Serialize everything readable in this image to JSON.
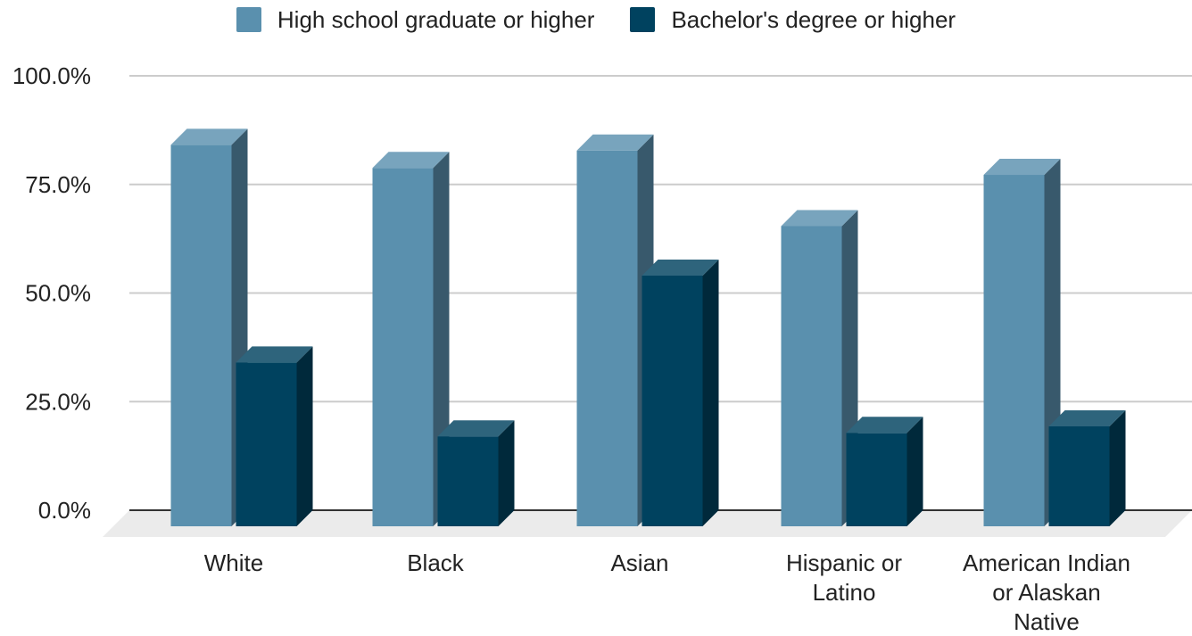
{
  "chart_data": {
    "type": "bar",
    "style": "3d",
    "title": "",
    "xlabel": "",
    "ylabel": "",
    "categories": [
      [
        "White"
      ],
      [
        "Black"
      ],
      [
        "Asian"
      ],
      [
        "Hispanic or",
        "Latino"
      ],
      [
        "American Indian",
        "or Alaskan",
        "Native"
      ]
    ],
    "series": [
      {
        "name": "High school graduate or higher",
        "color": "#5a90ae",
        "values": [
          87.8,
          82.5,
          86.5,
          69.1,
          80.9
        ]
      },
      {
        "name": "Bachelor's degree or higher",
        "color": "#00425f",
        "values": [
          37.7,
          20.7,
          57.7,
          21.5,
          23.0
        ]
      }
    ],
    "ylim": [
      0,
      100
    ],
    "yticks": [
      "0.0%",
      "25.0%",
      "50.0%",
      "75.0%",
      "100.0%"
    ],
    "ytick_values": [
      0,
      25,
      50,
      75,
      100
    ],
    "grid": true,
    "legend": "top"
  }
}
